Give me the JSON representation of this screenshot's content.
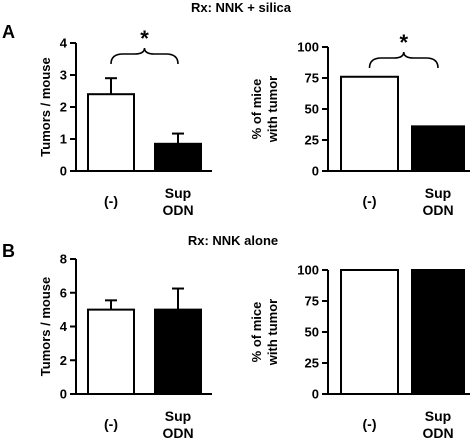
{
  "figure": {
    "panel_a_label": "A",
    "panel_b_label": "B",
    "panel_a_title": "Rx: NNK + silica",
    "panel_b_title": "Rx: NNK alone"
  },
  "chart_data": [
    {
      "id": "a-left",
      "type": "bar",
      "categories": [
        "(-)",
        "Sup\nODN"
      ],
      "values": [
        2.4,
        0.85
      ],
      "errors": [
        0.5,
        0.32
      ],
      "bar_colors": [
        "#ffffff",
        "#000000"
      ],
      "ylabel": "Tumors / mouse",
      "ylim": [
        0,
        4
      ],
      "yticks": [
        0,
        1,
        2,
        3,
        4
      ],
      "significance": "*",
      "grid": false
    },
    {
      "id": "a-right",
      "type": "bar",
      "categories": [
        "(-)",
        "Sup\nODN"
      ],
      "values": [
        76,
        36
      ],
      "bar_colors": [
        "#ffffff",
        "#000000"
      ],
      "ylabel": "% of mice\nwith tumor",
      "ylim": [
        0,
        100
      ],
      "yticks": [
        0,
        25,
        50,
        75,
        100
      ],
      "significance": "*",
      "grid": false
    },
    {
      "id": "b-left",
      "type": "bar",
      "categories": [
        "(-)",
        "Sup\nODN"
      ],
      "values": [
        5.0,
        5.0
      ],
      "errors": [
        0.55,
        1.25
      ],
      "bar_colors": [
        "#ffffff",
        "#000000"
      ],
      "ylabel": "Tumors / mouse",
      "ylim": [
        0,
        8
      ],
      "yticks": [
        0,
        2,
        4,
        6,
        8
      ],
      "grid": false
    },
    {
      "id": "b-right",
      "type": "bar",
      "categories": [
        "(-)",
        "Sup\nODN"
      ],
      "values": [
        100,
        100
      ],
      "bar_colors": [
        "#ffffff",
        "#000000"
      ],
      "ylabel": "% of mice\nwith tumor",
      "ylim": [
        0,
        100
      ],
      "yticks": [
        0,
        25,
        50,
        75,
        100
      ],
      "grid": false
    }
  ]
}
